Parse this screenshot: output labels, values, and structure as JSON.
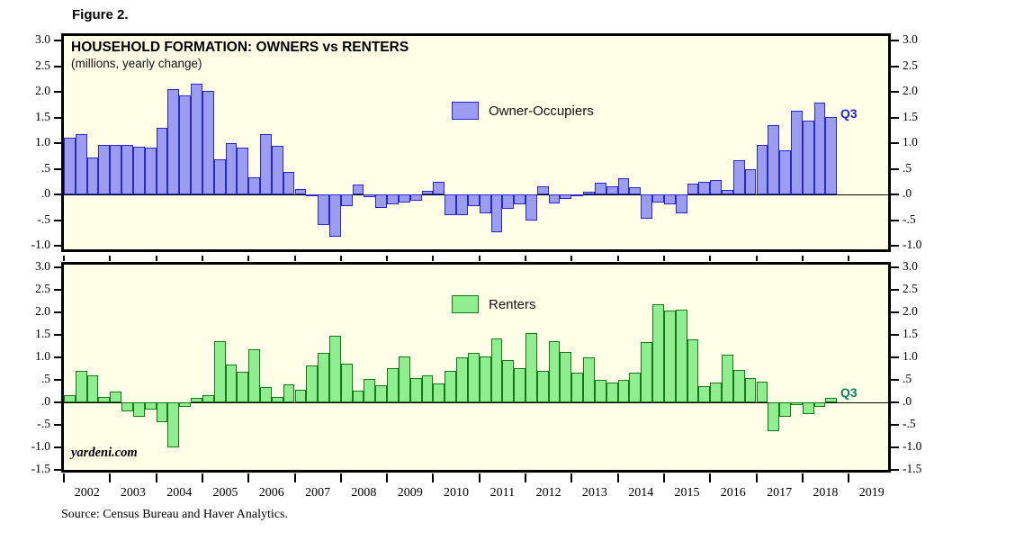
{
  "figure_label": "Figure 2.",
  "title": "HOUSEHOLD FORMATION: OWNERS vs RENTERS",
  "subtitle": "(millions, yearly change)",
  "source": "Source: Census Bureau and Haver Analytics.",
  "watermark": "yardeni.com",
  "colors": {
    "plot_background": "#fffee6",
    "owner_fill": "#9c9cf0",
    "owner_border": "#2828d0",
    "renter_fill": "#90ee90",
    "renter_border": "#157a15",
    "q3_top_label": "#2424cc",
    "q3_bottom_label": "#0e7c66"
  },
  "years": [
    "2002",
    "2003",
    "2004",
    "2005",
    "2006",
    "2007",
    "2008",
    "2009",
    "2010",
    "2011",
    "2012",
    "2013",
    "2014",
    "2015",
    "2016",
    "2017",
    "2018",
    "2019"
  ],
  "chart_data": [
    {
      "type": "bar",
      "panel": "top",
      "series_name": "Owner-Occupiers",
      "legend": "Owner-Occupiers",
      "units": "millions, yearly change",
      "x_start": "2002Q1",
      "x_end": "2018Q3",
      "frequency": "quarterly",
      "ylim": [
        -1.0,
        3.0
      ],
      "grid": false,
      "last_point_label": "Q3",
      "yticks": [
        {
          "label": "3.0",
          "v": 3.0
        },
        {
          "label": "2.5",
          "v": 2.5
        },
        {
          "label": "2.0",
          "v": 2.0
        },
        {
          "label": "1.5",
          "v": 1.5
        },
        {
          "label": "1.0",
          "v": 1.0
        },
        {
          "label": ".5",
          "v": 0.5
        },
        {
          "label": ".0",
          "v": 0.0
        },
        {
          "label": "-.5",
          "v": -0.5
        },
        {
          "label": "-1.0",
          "v": -1.0
        }
      ],
      "values": [
        1.1,
        1.17,
        0.72,
        0.97,
        0.97,
        0.97,
        0.93,
        0.92,
        1.3,
        2.05,
        1.93,
        2.16,
        2.02,
        0.69,
        1.0,
        0.91,
        0.34,
        1.18,
        0.95,
        0.43,
        0.11,
        -0.03,
        -0.6,
        -0.83,
        -0.22,
        0.2,
        -0.06,
        -0.26,
        -0.19,
        -0.16,
        -0.12,
        0.07,
        0.24,
        -0.4,
        -0.41,
        -0.23,
        -0.37,
        -0.73,
        -0.28,
        -0.2,
        -0.5,
        0.15,
        -0.18,
        -0.09,
        -0.04,
        0.05,
        0.23,
        0.15,
        0.32,
        0.14,
        -0.47,
        -0.15,
        -0.19,
        -0.36,
        0.21,
        0.25,
        0.28,
        0.08,
        0.67,
        0.49,
        0.97,
        1.35,
        0.86,
        1.63,
        1.44,
        1.79,
        1.5
      ]
    },
    {
      "type": "bar",
      "panel": "bottom",
      "series_name": "Renters",
      "legend": "Renters",
      "units": "millions, yearly change",
      "x_start": "2002Q1",
      "x_end": "2018Q3",
      "frequency": "quarterly",
      "ylim": [
        -1.5,
        3.0
      ],
      "grid": false,
      "last_point_label": "Q3",
      "yticks": [
        {
          "label": "3.0",
          "v": 3.0
        },
        {
          "label": "2.5",
          "v": 2.5
        },
        {
          "label": "2.0",
          "v": 2.0
        },
        {
          "label": "1.5",
          "v": 1.5
        },
        {
          "label": "1.0",
          "v": 1.0
        },
        {
          "label": ".5",
          "v": 0.5
        },
        {
          "label": ".0",
          "v": 0.0
        },
        {
          "label": "-.5",
          "v": -0.5
        },
        {
          "label": "-1.0",
          "v": -1.0
        },
        {
          "label": "-1.5",
          "v": -1.5
        }
      ],
      "values": [
        0.16,
        0.7,
        0.59,
        0.12,
        0.23,
        -0.19,
        -0.31,
        -0.16,
        -0.43,
        -0.99,
        -0.09,
        0.1,
        0.15,
        1.35,
        0.84,
        0.68,
        1.17,
        0.33,
        0.12,
        0.4,
        0.28,
        0.82,
        1.09,
        1.47,
        0.86,
        0.26,
        0.51,
        0.37,
        0.76,
        1.02,
        0.53,
        0.6,
        0.42,
        0.69,
        0.99,
        1.1,
        1.02,
        1.42,
        0.93,
        0.76,
        1.53,
        0.69,
        1.35,
        1.11,
        0.66,
        0.99,
        0.49,
        0.43,
        0.49,
        0.66,
        1.34,
        2.18,
        2.04,
        2.07,
        1.39,
        0.36,
        0.43,
        1.05,
        0.71,
        0.53,
        0.46,
        -0.64,
        -0.31,
        -0.05,
        -0.25,
        -0.1,
        0.1
      ]
    }
  ]
}
